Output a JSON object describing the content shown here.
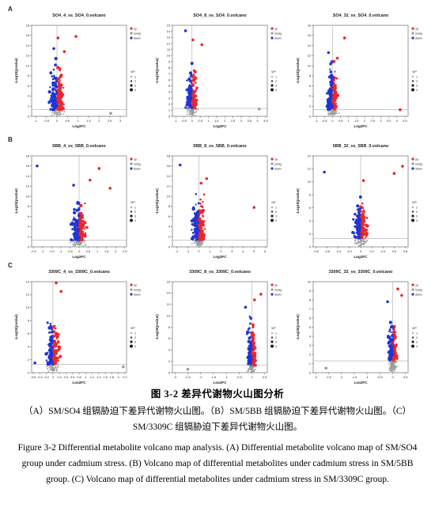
{
  "figure": {
    "rows": [
      {
        "label": "A",
        "panels": [
          {
            "title": "SO4_4_vs_SO4_0.volcano",
            "x_ticks": [
              "-1",
              "-0.5",
              "0",
              "0.5",
              "1",
              "1.5",
              "2",
              "2.5",
              "3"
            ],
            "y_ticks": [
              "0",
              "2",
              "4",
              "6",
              "8",
              "10",
              "12",
              "14",
              "16",
              "18"
            ],
            "xlim": [
              -1.2,
              3.3
            ],
            "ylim": [
              0,
              18
            ],
            "hits": [
              [
                0.9,
                15.8
              ],
              [
                0.35,
                12.8
              ],
              [
                -0.15,
                13.4
              ],
              [
                0.05,
                15.5
              ],
              [
                2.55,
                0.6
              ]
            ]
          },
          {
            "title": "SO4_8_vs_SO4_0.volcano",
            "x_ticks": [
              "-1",
              "-0.5",
              "0",
              "0.5",
              "1",
              "1.5",
              "2",
              "2.5",
              "3",
              "3.5",
              "4",
              "4.5"
            ],
            "y_ticks": [
              "0",
              "1",
              "2",
              "3",
              "4",
              "5",
              "6",
              "7",
              "8",
              "9",
              "10",
              "11",
              "12",
              "13",
              "14",
              "15"
            ],
            "xlim": [
              -1.2,
              4.6
            ],
            "ylim": [
              0,
              15
            ],
            "hits": [
              [
                -0.4,
                14.1
              ],
              [
                0.05,
                12.6
              ],
              [
                4.1,
                1.2
              ],
              [
                0.6,
                11.8
              ]
            ]
          },
          {
            "title": "SO4_32_vs_SO4_0.volcano",
            "x_ticks": [
              "-1",
              "-0.5",
              "0",
              "0.5",
              "1",
              "1.5",
              "2",
              "2.5",
              "3",
              "3.5",
              "4",
              "4.5"
            ],
            "y_ticks": [
              "0",
              "2",
              "4",
              "6",
              "8",
              "10",
              "12",
              "14",
              "16",
              "18"
            ],
            "xlim": [
              -1.2,
              4.7
            ],
            "ylim": [
              0,
              18
            ],
            "hits": [
              [
                0.75,
                15.5
              ],
              [
                -0.25,
                12.6
              ],
              [
                4.2,
                1.3
              ],
              [
                0.3,
                11.5
              ]
            ]
          }
        ]
      },
      {
        "label": "B",
        "panels": [
          {
            "title": "5BB_4_vs_5BB_0.volcano",
            "x_ticks": [
              "-2.5",
              "-2",
              "-1.5",
              "-1",
              "-0.5",
              "0",
              "0.5",
              "1",
              "1.5",
              "2",
              "2.5"
            ],
            "y_ticks": [
              "0",
              "2",
              "4",
              "6",
              "8",
              "10",
              "12",
              "14",
              "16",
              "18"
            ],
            "xlim": [
              -2.6,
              2.6
            ],
            "ylim": [
              0,
              18
            ],
            "hits": [
              [
                -2.3,
                16
              ],
              [
                1.1,
                15.5
              ],
              [
                0.6,
                13.2
              ],
              [
                -0.3,
                12.2
              ],
              [
                1.7,
                11.6
              ]
            ]
          },
          {
            "title": "5BB_8_vs_5BB_0.volcano",
            "x_ticks": [
              "-2",
              "-1",
              "0",
              "1",
              "2",
              "3",
              "4",
              "5",
              "6"
            ],
            "y_ticks": [
              "0",
              "2",
              "4",
              "6",
              "8",
              "10",
              "12",
              "14",
              "16",
              "18"
            ],
            "xlim": [
              -2.4,
              6.2
            ],
            "ylim": [
              0,
              18
            ],
            "hits": [
              [
                -1.7,
                16.2
              ],
              [
                5.0,
                7.8
              ],
              [
                0.7,
                13.5
              ],
              [
                0.2,
                12.6
              ]
            ]
          },
          {
            "title": "5BB_32_vs_5BB_0.volcano",
            "x_ticks": [
              "-0.8",
              "-0.6",
              "-0.4",
              "-0.2",
              "0",
              "0.2",
              "0.4",
              "0.6",
              "0.8"
            ],
            "y_ticks": [
              "0",
              "2",
              "4",
              "6",
              "8",
              "10",
              "12",
              "14"
            ],
            "xlim": [
              -0.85,
              0.85
            ],
            "ylim": [
              0,
              14
            ],
            "hits": [
              [
                -0.65,
                11.5
              ],
              [
                0.6,
                11.3
              ],
              [
                0.75,
                12.4
              ],
              [
                0.05,
                10.2
              ]
            ]
          }
        ]
      },
      {
        "label": "C",
        "panels": [
          {
            "title": "3309C_4_vs_3309C_0.volcano",
            "x_ticks": [
              "-0.6",
              "-0.4",
              "-0.2",
              "0",
              "0.2",
              "0.4",
              "0.6",
              "0.8",
              "1",
              "1.2",
              "1.4",
              "1.6",
              "1.8",
              "2",
              "2.2"
            ],
            "y_ticks": [
              "0",
              "2",
              "4",
              "6",
              "8",
              "10",
              "12",
              "14"
            ],
            "xlim": [
              -0.65,
              2.25
            ],
            "ylim": [
              0,
              14
            ],
            "hits": [
              [
                2.15,
                0.9
              ],
              [
                -0.55,
                1.5
              ],
              [
                0.1,
                13.8
              ],
              [
                0.25,
                12.5
              ]
            ]
          },
          {
            "title": "3309C_8_vs_3309C_0.volcano",
            "x_ticks": [
              "-3",
              "-2.5",
              "-2",
              "-1.5",
              "-1",
              "-0.5",
              "0",
              "0.5"
            ],
            "y_ticks": [
              "0",
              "2",
              "4",
              "6",
              "8",
              "10",
              "12",
              "14",
              "16"
            ],
            "xlim": [
              -3.1,
              0.6
            ],
            "ylim": [
              0,
              16
            ],
            "hits": [
              [
                -2.5,
                0.6
              ],
              [
                0.35,
                13.8
              ],
              [
                0.1,
                12.8
              ],
              [
                -0.25,
                11.5
              ]
            ]
          },
          {
            "title": "3309C_32_vs_3309C_0.volcano",
            "x_ticks": [
              "-3",
              "-2.5",
              "-2",
              "-1.5",
              "-1",
              "-0.5",
              "0",
              "0.5"
            ],
            "y_ticks": [
              "0",
              "1",
              "2",
              "3",
              "4",
              "5",
              "6",
              "7",
              "8",
              "9",
              "10"
            ],
            "xlim": [
              -3.1,
              0.6
            ],
            "ylim": [
              0,
              10
            ],
            "hits": [
              [
                -2.6,
                0.5
              ],
              [
                0.2,
                9.2
              ],
              [
                0.35,
                8.5
              ],
              [
                -0.2,
                7.8
              ]
            ]
          }
        ]
      }
    ],
    "x_axis_label": "Log2FC",
    "y_axis_label": "-Log10(pvalue)",
    "legend_entries": [
      "up",
      "nosig",
      "down"
    ],
    "size_title": "VIP",
    "size_levels": [
      "1",
      "2",
      "3",
      "4"
    ],
    "colors": {
      "up": "#e8282b",
      "down": "#1f34d6",
      "nosig": "#9a9a9a"
    }
  },
  "caption": {
    "title_zh": "图 3-2 差异代谢物火山图分析",
    "body_zh": "（A）SM/SO4 组镉胁迫下差异代谢物火山图。（B）SM/5BB 组镉胁迫下差异代谢物火山图。（C）SM/3309C 组镉胁迫下差异代谢物火山图。",
    "body_en": "Figure 3-2 Differential metabolite volcano map analysis. (A) Differential metabolite volcano map of SM/SO4 group under cadmium stress. (B) Volcano map of differential metabolites under cadmium stress in SM/5BB group. (C) Volcano map of differential metabolites under cadmium stress in SM/3309C group."
  }
}
